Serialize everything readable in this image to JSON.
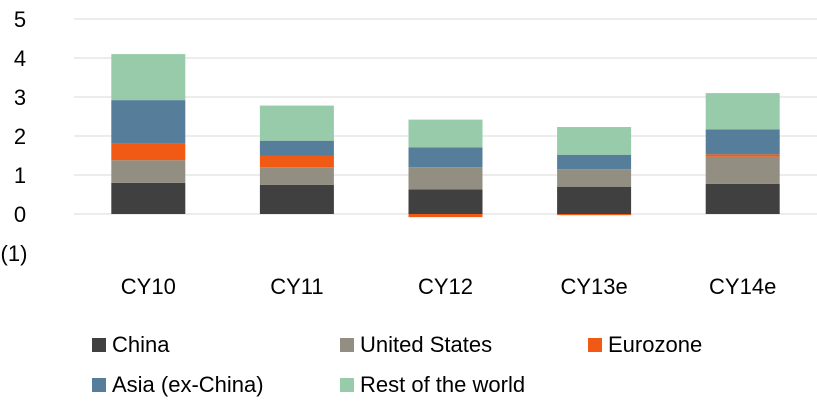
{
  "chart_data": {
    "type": "bar",
    "stacked": true,
    "categories": [
      "CY10",
      "CY11",
      "CY12",
      "CY13e",
      "CY14e"
    ],
    "y_tick_labels": [
      "(1)",
      "0",
      "1",
      "2",
      "3",
      "4",
      "5"
    ],
    "ylim": [
      -1,
      5
    ],
    "grid": "horizontal",
    "legend_position": "bottom",
    "series": [
      {
        "name": "China",
        "color": "#404040",
        "values": [
          0.8,
          0.75,
          0.63,
          0.7,
          0.77
        ]
      },
      {
        "name": "United States",
        "color": "#938e82",
        "values": [
          0.58,
          0.45,
          0.57,
          0.45,
          0.7
        ]
      },
      {
        "name": "Eurozone",
        "color": "#f05a14",
        "values": [
          0.42,
          0.3,
          -0.08,
          -0.03,
          0.06
        ]
      },
      {
        "name": "Asia (ex-China)",
        "color": "#567d99",
        "values": [
          1.12,
          0.38,
          0.51,
          0.37,
          0.64
        ]
      },
      {
        "name": "Rest of the world",
        "color": "#97cba9",
        "values": [
          1.18,
          0.9,
          0.71,
          0.71,
          0.93
        ]
      }
    ]
  }
}
